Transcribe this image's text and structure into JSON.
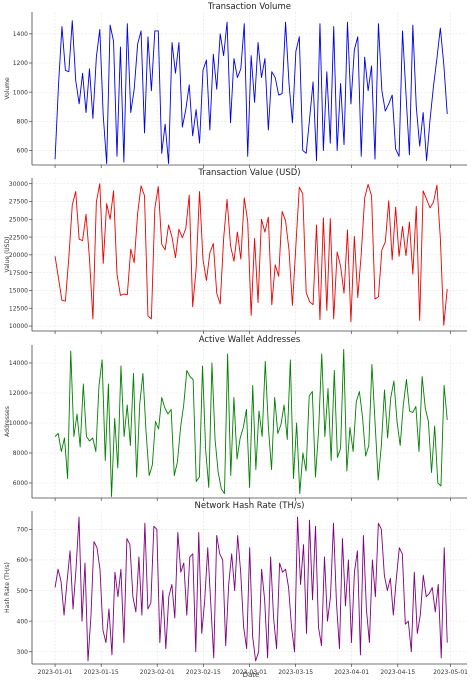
{
  "x_label": "Date",
  "x_ticks": [
    "2023-01-01",
    "2023-01-15",
    "2023-02-01",
    "2023-02-15",
    "2023-03-01",
    "2023-03-15",
    "2023-04-01",
    "2023-04-15",
    "2023-05-01"
  ],
  "chart_data": [
    {
      "type": "line",
      "title": "Transaction Volume",
      "ylabel": "Volume",
      "color": "#0000ee",
      "ylim": [
        500,
        1550
      ],
      "yticks": [
        600,
        800,
        1000,
        1200,
        1400
      ],
      "x_start": "2023-01-01",
      "x_end": "2023-04-30",
      "grid": true,
      "values": [
        540,
        1050,
        1450,
        1150,
        1140,
        1490,
        1080,
        920,
        960,
        1130,
        860,
        1160,
        820,
        1240,
        1430,
        840,
        510,
        1060,
        1460,
        1350,
        960,
        560,
        1310,
        520,
        1470,
        860,
        1020,
        1330,
        1420,
        720,
        1250,
        1380,
        1010,
        1420,
        1420,
        1200,
        580,
        780,
        510,
        1340,
        1130,
        1340,
        760,
        880,
        1050,
        700,
        880,
        650,
        1000,
        1150,
        1220,
        740,
        910,
        1260,
        1020,
        1400,
        1250,
        1480,
        1100,
        790,
        1230,
        1100,
        1160,
        1350,
        1470,
        560,
        1050,
        1250,
        930,
        1340,
        1100,
        1110,
        1230,
        740,
        1140,
        1100,
        1060,
        980,
        990,
        1150,
        1480,
        1060,
        790,
        920,
        1140,
        1280,
        1380,
        600,
        580,
        820,
        1010,
        1070,
        530,
        1470,
        1040,
        600,
        1140,
        650,
        1450,
        600,
        1060,
        830,
        640,
        1480,
        920,
        1050,
        850,
        1290,
        1380,
        560,
        1240,
        1010,
        950,
        1150,
        1180,
        1000,
        540,
        1470,
        1010,
        870,
        870,
        920,
        980,
        830,
        610,
        560,
        600,
        1020,
        1420,
        990,
        570,
        1460,
        900,
        630,
        860,
        530,
        660,
        810,
        1040,
        1230,
        1440,
        1190,
        850
      ],
      "plot_values": [
        540,
        1050,
        1450,
        1150,
        1140,
        1490,
        1080,
        920,
        1130,
        860,
        1160,
        820,
        1240,
        1430,
        840,
        510,
        1460,
        1350,
        560,
        1310,
        520,
        1470,
        860,
        1020,
        1330,
        1420,
        720,
        1380,
        1010,
        1420,
        1420,
        580,
        780,
        510,
        1340,
        1130,
        1340,
        760,
        880,
        1050,
        700,
        880,
        650,
        1150,
        1220,
        740,
        1260,
        1020,
        1400,
        1250,
        1480,
        790,
        1230,
        1100,
        1160,
        1470,
        560,
        1250,
        930,
        1340,
        1100,
        1230,
        740,
        1140,
        1100,
        980,
        990,
        1480,
        1060,
        790,
        1280,
        1380,
        600,
        580,
        820,
        1070,
        530,
        1470,
        600,
        1140,
        650,
        1450,
        600,
        1060,
        640,
        1480,
        920,
        1290,
        1380,
        560,
        1240,
        1010,
        1180,
        540,
        1470,
        1010,
        870,
        920,
        980,
        610,
        560,
        1420,
        990,
        570,
        1460,
        900,
        630,
        860,
        530,
        810,
        1040,
        1230,
        1440,
        1190,
        850
      ]
    },
    {
      "type": "line",
      "title": "Transaction Value (USD)",
      "ylabel": "Value (USD)",
      "color": "#ee0000",
      "ylim": [
        9300,
        30800
      ],
      "yticks": [
        10000,
        12500,
        15000,
        17500,
        20000,
        22500,
        25000,
        27500,
        30000
      ],
      "x_start": "2023-01-01",
      "x_end": "2023-04-30",
      "grid": true,
      "plot_values": [
        19800,
        16700,
        13600,
        13500,
        19600,
        27000,
        28900,
        22200,
        22000,
        25700,
        19500,
        11000,
        27400,
        30000,
        18800,
        27200,
        25000,
        29000,
        17300,
        14300,
        14500,
        14400,
        20800,
        18900,
        25800,
        29700,
        28300,
        11400,
        11000,
        26500,
        29600,
        21500,
        20700,
        24200,
        22500,
        19600,
        23600,
        22400,
        23700,
        28400,
        12700,
        18000,
        28900,
        19300,
        16400,
        20300,
        21600,
        14600,
        13100,
        22300,
        27800,
        21300,
        19100,
        23200,
        19400,
        28000,
        24700,
        11500,
        22300,
        13300,
        25000,
        23200,
        25300,
        13000,
        18600,
        17000,
        26100,
        24800,
        20700,
        12900,
        21300,
        29500,
        28600,
        14700,
        13400,
        13000,
        24200,
        10900,
        25200,
        12200,
        25100,
        11000,
        20400,
        18400,
        14600,
        23500,
        10600,
        22600,
        14000,
        20100,
        28000,
        29900,
        28300,
        13800,
        14100,
        20700,
        21800,
        27600,
        19300,
        26700,
        19800,
        24000,
        19900,
        24600,
        17300,
        26800,
        10800,
        29000,
        27800,
        26600,
        27400,
        29800,
        22300,
        10100,
        15200
      ]
    },
    {
      "type": "line",
      "title": "Active Wallet Addresses",
      "ylabel": "Addresses",
      "color": "#008000",
      "ylim": [
        5000,
        15200
      ],
      "yticks": [
        6000,
        8000,
        10000,
        12000,
        14000
      ],
      "x_start": "2023-01-01",
      "x_end": "2023-04-30",
      "grid": true,
      "plot_values": [
        9100,
        9300,
        8100,
        9000,
        6300,
        14800,
        9100,
        10600,
        8400,
        12600,
        9100,
        8800,
        9000,
        8100,
        12500,
        14200,
        7500,
        12600,
        5100,
        10300,
        7000,
        13800,
        9100,
        11200,
        8500,
        13300,
        6400,
        11300,
        13300,
        9400,
        6500,
        7200,
        10100,
        9600,
        11700,
        11000,
        10600,
        10900,
        6500,
        7400,
        9700,
        11200,
        13500,
        13100,
        12900,
        6100,
        6400,
        13800,
        8200,
        5700,
        14000,
        8900,
        6700,
        5600,
        5300,
        14600,
        6500,
        11700,
        7600,
        9000,
        9700,
        10900,
        5700,
        12500,
        6900,
        10800,
        9100,
        14100,
        9700,
        6900,
        11700,
        9300,
        9900,
        11200,
        8900,
        14200,
        6300,
        10000,
        5300,
        8000,
        6800,
        11800,
        12100,
        6400,
        9500,
        14600,
        9100,
        12300,
        7500,
        13500,
        7700,
        8300,
        14900,
        6800,
        9700,
        8100,
        11400,
        12100,
        10400,
        7800,
        8500,
        13900,
        10000,
        6200,
        8500,
        12200,
        9000,
        11700,
        12800,
        10100,
        8500,
        11200,
        12900,
        10800,
        10700,
        11100,
        8100,
        13100,
        11000,
        10100,
        6700,
        9800,
        6000,
        5800,
        12500,
        10200
      ]
    },
    {
      "type": "line",
      "title": "Network Hash Rate (TH/s)",
      "ylabel": "Hash Rate (TH/s)",
      "color": "#800080",
      "ylim": [
        260,
        760
      ],
      "yticks": [
        300,
        400,
        500,
        600,
        700
      ],
      "x_start": "2023-01-01",
      "x_end": "2023-04-30",
      "grid": true,
      "plot_values": [
        510,
        570,
        530,
        420,
        530,
        630,
        440,
        570,
        740,
        400,
        590,
        270,
        420,
        660,
        640,
        570,
        370,
        330,
        440,
        290,
        560,
        480,
        570,
        330,
        670,
        650,
        480,
        430,
        610,
        420,
        720,
        440,
        460,
        710,
        700,
        330,
        500,
        310,
        480,
        520,
        410,
        690,
        560,
        590,
        420,
        610,
        620,
        300,
        690,
        360,
        470,
        640,
        460,
        280,
        680,
        620,
        600,
        320,
        520,
        620,
        500,
        680,
        560,
        380,
        310,
        640,
        350,
        270,
        300,
        570,
        470,
        280,
        610,
        410,
        310,
        590,
        560,
        570,
        510,
        380,
        300,
        740,
        520,
        650,
        360,
        730,
        470,
        710,
        380,
        320,
        610,
        400,
        480,
        720,
        460,
        310,
        670,
        450,
        600,
        330,
        560,
        630,
        290,
        680,
        440,
        330,
        600,
        480,
        720,
        700,
        550,
        500,
        540,
        420,
        540,
        640,
        620,
        390,
        400,
        300,
        560,
        360,
        420,
        550,
        480,
        490,
        510,
        430,
        520,
        280,
        640,
        330
      ]
    }
  ]
}
